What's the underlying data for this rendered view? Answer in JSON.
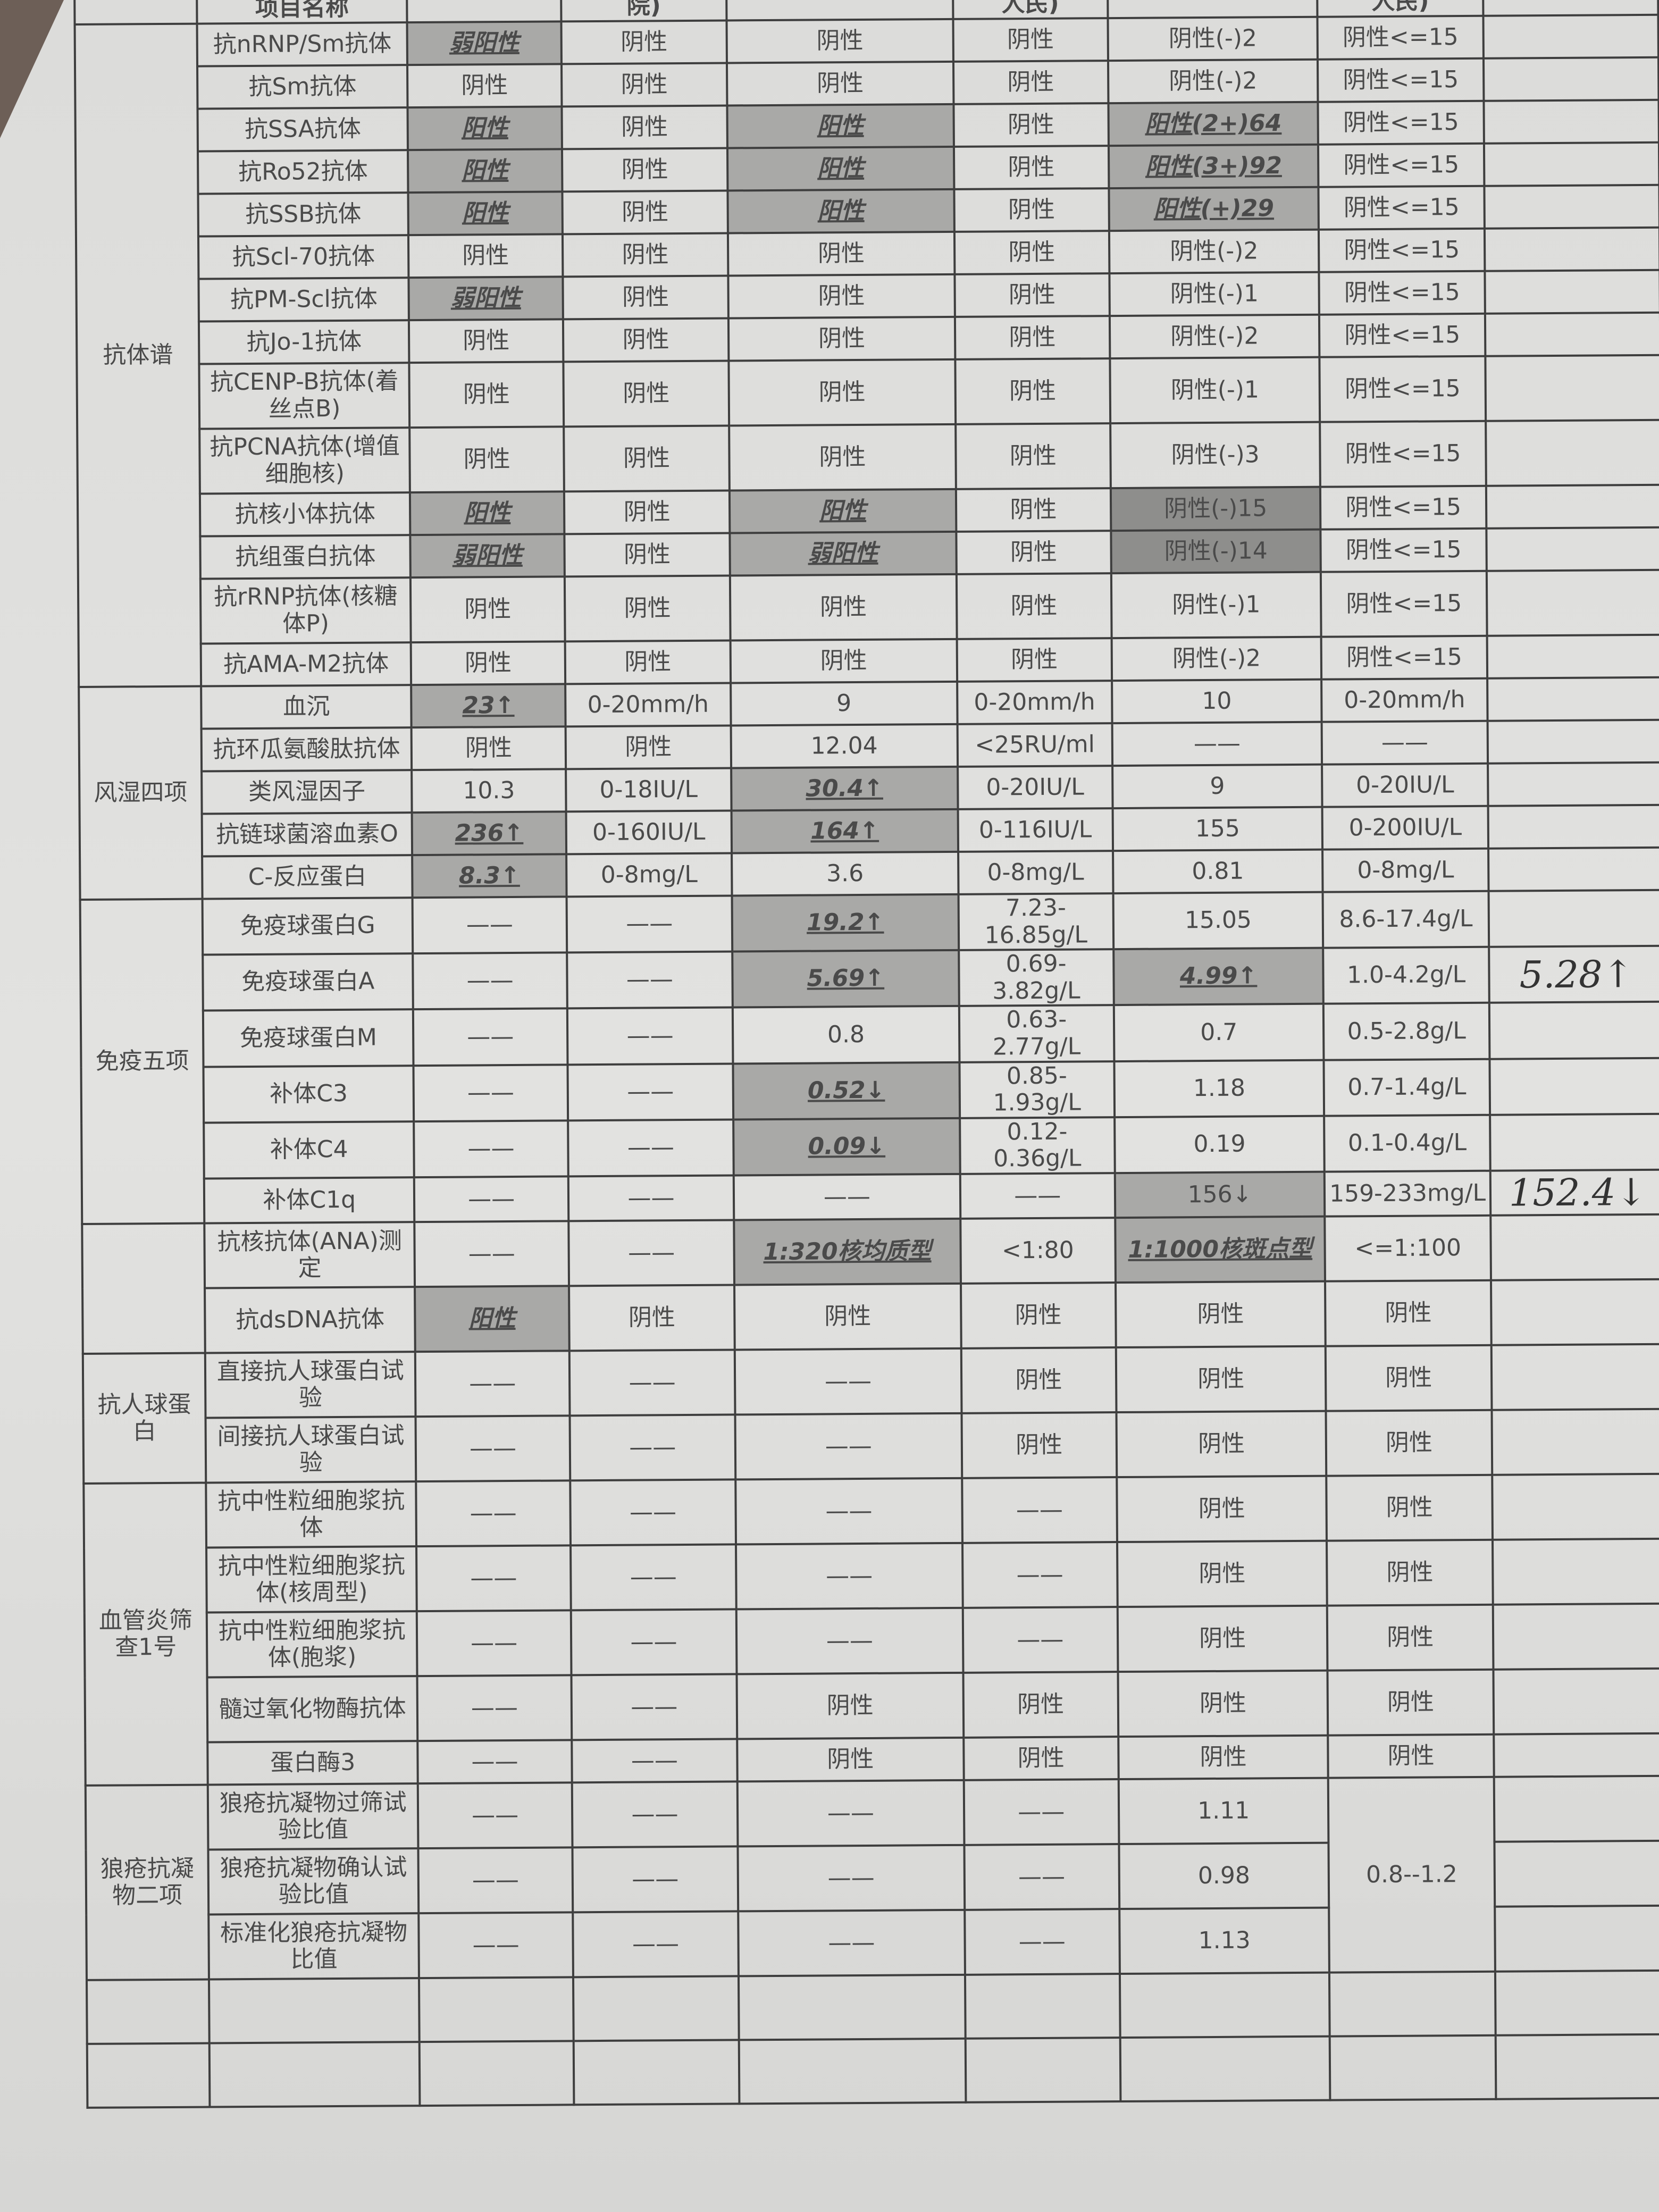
{
  "header": [
    "项目名称",
    "",
    "院)",
    "",
    "人民)",
    "",
    "人民)",
    ""
  ],
  "groups": [
    {
      "name": "抗体谱",
      "rows": [
        {
          "name": "抗nRNP/Sm抗体",
          "cells": [
            {
              "t": "弱阳性",
              "s": "hlu"
            },
            {
              "t": "阴性"
            },
            {
              "t": "阴性"
            },
            {
              "t": "阴性"
            },
            {
              "t": "阴性(-)2"
            },
            {
              "t": "阴性<=15"
            }
          ]
        },
        {
          "name": "抗Sm抗体",
          "cells": [
            {
              "t": "阴性"
            },
            {
              "t": "阴性"
            },
            {
              "t": "阴性"
            },
            {
              "t": "阴性"
            },
            {
              "t": "阴性(-)2"
            },
            {
              "t": "阴性<=15"
            }
          ]
        },
        {
          "name": "抗SSA抗体",
          "cells": [
            {
              "t": "阳性",
              "s": "hlu"
            },
            {
              "t": "阴性"
            },
            {
              "t": "阳性",
              "s": "hlu"
            },
            {
              "t": "阴性"
            },
            {
              "t": "阳性(2+)64",
              "s": "hlu"
            },
            {
              "t": "阴性<=15"
            }
          ]
        },
        {
          "name": "抗Ro52抗体",
          "cells": [
            {
              "t": "阳性",
              "s": "hlu"
            },
            {
              "t": "阴性"
            },
            {
              "t": "阳性",
              "s": "hlu"
            },
            {
              "t": "阴性"
            },
            {
              "t": "阳性(3+)92",
              "s": "hlu"
            },
            {
              "t": "阴性<=15"
            }
          ]
        },
        {
          "name": "抗SSB抗体",
          "cells": [
            {
              "t": "阳性",
              "s": "hlu"
            },
            {
              "t": "阴性"
            },
            {
              "t": "阳性",
              "s": "hlu"
            },
            {
              "t": "阴性"
            },
            {
              "t": "阳性(+)29",
              "s": "hlu"
            },
            {
              "t": "阴性<=15"
            }
          ]
        },
        {
          "name": "抗Scl-70抗体",
          "cells": [
            {
              "t": "阴性"
            },
            {
              "t": "阴性"
            },
            {
              "t": "阴性"
            },
            {
              "t": "阴性"
            },
            {
              "t": "阴性(-)2"
            },
            {
              "t": "阴性<=15"
            }
          ]
        },
        {
          "name": "抗PM-Scl抗体",
          "cells": [
            {
              "t": "弱阳性",
              "s": "hlu"
            },
            {
              "t": "阴性"
            },
            {
              "t": "阴性"
            },
            {
              "t": "阴性"
            },
            {
              "t": "阴性(-)1"
            },
            {
              "t": "阴性<=15"
            }
          ]
        },
        {
          "name": "抗Jo-1抗体",
          "cells": [
            {
              "t": "阴性"
            },
            {
              "t": "阴性"
            },
            {
              "t": "阴性"
            },
            {
              "t": "阴性"
            },
            {
              "t": "阴性(-)2"
            },
            {
              "t": "阴性<=15"
            }
          ]
        },
        {
          "name": "抗CENP-B抗体(着丝点B)",
          "tall": true,
          "cells": [
            {
              "t": "阴性"
            },
            {
              "t": "阴性"
            },
            {
              "t": "阴性"
            },
            {
              "t": "阴性"
            },
            {
              "t": "阴性(-)1"
            },
            {
              "t": "阴性<=15"
            }
          ]
        },
        {
          "name": "抗PCNA抗体(增值细胞核)",
          "tall": true,
          "cells": [
            {
              "t": "阴性"
            },
            {
              "t": "阴性"
            },
            {
              "t": "阴性"
            },
            {
              "t": "阴性"
            },
            {
              "t": "阴性(-)3"
            },
            {
              "t": "阴性<=15"
            }
          ]
        },
        {
          "name": "抗核小体抗体",
          "cells": [
            {
              "t": "阳性",
              "s": "hlu"
            },
            {
              "t": "阴性"
            },
            {
              "t": "阳性",
              "s": "hlu"
            },
            {
              "t": "阴性"
            },
            {
              "t": "阴性(-)15",
              "s": "dk"
            },
            {
              "t": "阴性<=15"
            }
          ]
        },
        {
          "name": "抗组蛋白抗体",
          "cells": [
            {
              "t": "弱阳性",
              "s": "hlu"
            },
            {
              "t": "阴性"
            },
            {
              "t": "弱阳性",
              "s": "hlu"
            },
            {
              "t": "阴性"
            },
            {
              "t": "阴性(-)14",
              "s": "dk"
            },
            {
              "t": "阴性<=15"
            }
          ]
        },
        {
          "name": "抗rRNP抗体(核糖体P)",
          "tall": true,
          "cells": [
            {
              "t": "阴性"
            },
            {
              "t": "阴性"
            },
            {
              "t": "阴性"
            },
            {
              "t": "阴性"
            },
            {
              "t": "阴性(-)1"
            },
            {
              "t": "阴性<=15"
            }
          ]
        },
        {
          "name": "抗AMA-M2抗体",
          "cells": [
            {
              "t": "阴性"
            },
            {
              "t": "阴性"
            },
            {
              "t": "阴性"
            },
            {
              "t": "阴性"
            },
            {
              "t": "阴性(-)2"
            },
            {
              "t": "阴性<=15"
            }
          ]
        }
      ]
    },
    {
      "name": "风湿四项",
      "rows": [
        {
          "name": "血沉",
          "cells": [
            {
              "t": "23↑",
              "s": "hlu"
            },
            {
              "t": "0-20mm/h"
            },
            {
              "t": "9"
            },
            {
              "t": "0-20mm/h"
            },
            {
              "t": "10"
            },
            {
              "t": "0-20mm/h"
            }
          ]
        },
        {
          "name": "抗环瓜氨酸肽抗体",
          "cells": [
            {
              "t": "阴性"
            },
            {
              "t": "阴性"
            },
            {
              "t": "12.04"
            },
            {
              "t": "<25RU/ml"
            },
            {
              "t": "——"
            },
            {
              "t": "——"
            }
          ]
        },
        {
          "name": "类风湿因子",
          "cells": [
            {
              "t": "10.3"
            },
            {
              "t": "0-18IU/L"
            },
            {
              "t": "30.4↑",
              "s": "hlu"
            },
            {
              "t": "0-20IU/L"
            },
            {
              "t": "9"
            },
            {
              "t": "0-20IU/L"
            }
          ]
        },
        {
          "name": "抗链球菌溶血素O",
          "cells": [
            {
              "t": "236↑",
              "s": "hlu"
            },
            {
              "t": "0-160IU/L"
            },
            {
              "t": "164↑",
              "s": "hlu"
            },
            {
              "t": "0-116IU/L"
            },
            {
              "t": "155"
            },
            {
              "t": "0-200IU/L"
            }
          ]
        },
        {
          "name": "C-反应蛋白",
          "cells": [
            {
              "t": "8.3↑",
              "s": "hlu"
            },
            {
              "t": "0-8mg/L"
            },
            {
              "t": "3.6"
            },
            {
              "t": "0-8mg/L"
            },
            {
              "t": "0.81"
            },
            {
              "t": "0-8mg/L"
            }
          ]
        }
      ]
    },
    {
      "name": "免疫五项",
      "rows": [
        {
          "name": "免疫球蛋白G",
          "cells": [
            {
              "t": "——"
            },
            {
              "t": "——"
            },
            {
              "t": "19.2↑",
              "s": "hlu"
            },
            {
              "t": "7.23-16.85g/L"
            },
            {
              "t": "15.05"
            },
            {
              "t": "8.6-17.4g/L"
            }
          ]
        },
        {
          "name": "免疫球蛋白A",
          "cells": [
            {
              "t": "——"
            },
            {
              "t": "——"
            },
            {
              "t": "5.69↑",
              "s": "hlu"
            },
            {
              "t": "0.69-3.82g/L"
            },
            {
              "t": "4.99↑",
              "s": "hlu"
            },
            {
              "t": "1.0-4.2g/L"
            }
          ],
          "note": "5.28↑"
        },
        {
          "name": "免疫球蛋白M",
          "cells": [
            {
              "t": "——"
            },
            {
              "t": "——"
            },
            {
              "t": "0.8"
            },
            {
              "t": "0.63-2.77g/L"
            },
            {
              "t": "0.7"
            },
            {
              "t": "0.5-2.8g/L"
            }
          ]
        },
        {
          "name": "补体C3",
          "cells": [
            {
              "t": "——"
            },
            {
              "t": "——"
            },
            {
              "t": "0.52↓",
              "s": "hlu"
            },
            {
              "t": "0.85-1.93g/L"
            },
            {
              "t": "1.18"
            },
            {
              "t": "0.7-1.4g/L"
            }
          ]
        },
        {
          "name": "补体C4",
          "cells": [
            {
              "t": "——"
            },
            {
              "t": "——"
            },
            {
              "t": "0.09↓",
              "s": "hlu"
            },
            {
              "t": "0.12-0.36g/L"
            },
            {
              "t": "0.19"
            },
            {
              "t": "0.1-0.4g/L"
            }
          ]
        },
        {
          "name": "补体C1q",
          "cells": [
            {
              "t": "——"
            },
            {
              "t": "——"
            },
            {
              "t": "——"
            },
            {
              "t": "——"
            },
            {
              "t": "156↓",
              "s": "hl"
            },
            {
              "t": "159-233mg/L"
            }
          ],
          "note": "152.4↓"
        }
      ]
    },
    {
      "name": "",
      "rows": [
        {
          "name": "抗核抗体(ANA)测定",
          "tall": true,
          "cells": [
            {
              "t": "——"
            },
            {
              "t": "——"
            },
            {
              "t": "1:320核均质型",
              "s": "hlu"
            },
            {
              "t": "<1:80"
            },
            {
              "t": "1:1000核斑点型",
              "s": "hlu"
            },
            {
              "t": "<=1:100"
            }
          ]
        },
        {
          "name": "抗dsDNA抗体",
          "tall": true,
          "cells": [
            {
              "t": "阳性",
              "s": "hlu"
            },
            {
              "t": "阴性"
            },
            {
              "t": "阴性"
            },
            {
              "t": "阴性"
            },
            {
              "t": "阴性"
            },
            {
              "t": "阴性"
            }
          ]
        }
      ]
    },
    {
      "name": "抗人球蛋白",
      "rows": [
        {
          "name": "直接抗人球蛋白试验",
          "tall": true,
          "cells": [
            {
              "t": "——"
            },
            {
              "t": "——"
            },
            {
              "t": "——"
            },
            {
              "t": "阴性"
            },
            {
              "t": "阴性"
            },
            {
              "t": "阴性"
            }
          ]
        },
        {
          "name": "间接抗人球蛋白试验",
          "tall": true,
          "cells": [
            {
              "t": "——"
            },
            {
              "t": "——"
            },
            {
              "t": "——"
            },
            {
              "t": "阴性"
            },
            {
              "t": "阴性"
            },
            {
              "t": "阴性"
            }
          ]
        }
      ]
    },
    {
      "name": "血管炎筛查1号",
      "rows": [
        {
          "name": "抗中性粒细胞浆抗体",
          "tall": true,
          "cells": [
            {
              "t": "——"
            },
            {
              "t": "——"
            },
            {
              "t": "——"
            },
            {
              "t": "——"
            },
            {
              "t": "阴性"
            },
            {
              "t": "阴性"
            }
          ]
        },
        {
          "name": "抗中性粒细胞浆抗体(核周型)",
          "tall": true,
          "cells": [
            {
              "t": "——"
            },
            {
              "t": "——"
            },
            {
              "t": "——"
            },
            {
              "t": "——"
            },
            {
              "t": "阴性"
            },
            {
              "t": "阴性"
            }
          ]
        },
        {
          "name": "抗中性粒细胞浆抗体(胞浆)",
          "tall": true,
          "cells": [
            {
              "t": "——"
            },
            {
              "t": "——"
            },
            {
              "t": "——"
            },
            {
              "t": "——"
            },
            {
              "t": "阴性"
            },
            {
              "t": "阴性"
            }
          ]
        },
        {
          "name": "髓过氧化物酶抗体",
          "tall": true,
          "cells": [
            {
              "t": "——"
            },
            {
              "t": "——"
            },
            {
              "t": "阴性"
            },
            {
              "t": "阴性"
            },
            {
              "t": "阴性"
            },
            {
              "t": "阴性"
            }
          ]
        },
        {
          "name": "蛋白酶3",
          "cells": [
            {
              "t": "——"
            },
            {
              "t": "——"
            },
            {
              "t": "阴性"
            },
            {
              "t": "阴性"
            },
            {
              "t": "阴性"
            },
            {
              "t": "阴性"
            }
          ]
        }
      ]
    },
    {
      "name": "狼疮抗凝物二项",
      "shared_ref": "0.8--1.2",
      "rows": [
        {
          "name": "狼疮抗凝物过筛试验比值",
          "tall": true,
          "cells": [
            {
              "t": "——"
            },
            {
              "t": "——"
            },
            {
              "t": "——"
            },
            {
              "t": "——"
            },
            {
              "t": "1.11"
            }
          ]
        },
        {
          "name": "狼疮抗凝物确认试验比值",
          "tall": true,
          "cells": [
            {
              "t": "——"
            },
            {
              "t": "——"
            },
            {
              "t": "——"
            },
            {
              "t": "——"
            },
            {
              "t": "0.98"
            }
          ]
        },
        {
          "name": "标准化狼疮抗凝物比值",
          "tall": true,
          "cells": [
            {
              "t": "——"
            },
            {
              "t": "——"
            },
            {
              "t": "——"
            },
            {
              "t": "——"
            },
            {
              "t": "1.13"
            }
          ]
        }
      ]
    }
  ],
  "blank_rows": 2
}
